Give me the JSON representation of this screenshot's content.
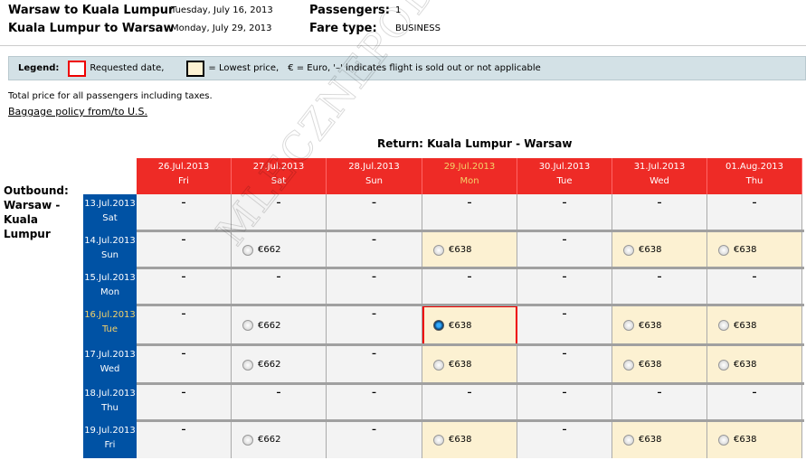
{
  "summary": {
    "outbound_route": "Warsaw to Kuala Lumpur",
    "outbound_date": "Tuesday, July 16, 2013",
    "return_route": "Kuala Lumpur to Warsaw",
    "return_date": "Monday, July 29, 2013",
    "passengers_label": "Passengers:",
    "passengers": "1",
    "fare_type_label": "Fare type:",
    "fare_type": "BUSINESS"
  },
  "legend": {
    "label": "Legend:",
    "requested": "Requested date,",
    "lowest": "= Lowest price,",
    "note": "€  = Euro, '–' indicates flight is sold out or not applicable"
  },
  "info": {
    "total_note": "Total price for all passengers including taxes.",
    "baggage_link": "Baggage policy from/to U.S."
  },
  "watermark": "MLECZNEPODROZE.pl",
  "grid": {
    "return_title": "Return: Kuala Lumpur - Warsaw",
    "outbound_title": "Outbound: Warsaw - Kuala Lumpur",
    "columns": [
      {
        "date": "26.Jul.2013",
        "day": "Fri"
      },
      {
        "date": "27.Jul.2013",
        "day": "Sat"
      },
      {
        "date": "28.Jul.2013",
        "day": "Sun"
      },
      {
        "date": "29.Jul.2013",
        "day": "Mon",
        "requested": true
      },
      {
        "date": "30.Jul.2013",
        "day": "Tue"
      },
      {
        "date": "31.Jul.2013",
        "day": "Wed"
      },
      {
        "date": "01.Aug.2013",
        "day": "Thu"
      }
    ],
    "rows": [
      {
        "date": "13.Jul.2013",
        "day": "Sat",
        "cells": [
          "–",
          "–",
          "–",
          "–",
          "–",
          "–",
          "–"
        ]
      },
      {
        "date": "14.Jul.2013",
        "day": "Sun",
        "cells": [
          "–",
          "€662",
          "–",
          "€638",
          "–",
          "€638",
          "€638"
        ]
      },
      {
        "date": "15.Jul.2013",
        "day": "Mon",
        "cells": [
          "–",
          "–",
          "–",
          "–",
          "–",
          "–",
          "–"
        ]
      },
      {
        "date": "16.Jul.2013",
        "day": "Tue",
        "requested": true,
        "cells": [
          "–",
          "€662",
          "–",
          "€638",
          "–",
          "€638",
          "€638"
        ]
      },
      {
        "date": "17.Jul.2013",
        "day": "Wed",
        "cells": [
          "–",
          "€662",
          "–",
          "€638",
          "–",
          "€638",
          "€638"
        ]
      },
      {
        "date": "18.Jul.2013",
        "day": "Thu",
        "cells": [
          "–",
          "–",
          "–",
          "–",
          "–",
          "–",
          "–"
        ]
      },
      {
        "date": "19.Jul.2013",
        "day": "Fri",
        "cells": [
          "–",
          "€662",
          "–",
          "€638",
          "–",
          "€638",
          "€638"
        ]
      }
    ],
    "lowest_price": "€638",
    "selected": {
      "row": 3,
      "col": 3
    }
  },
  "colors": {
    "header": "#ee2b26",
    "row_label": "#0052a4",
    "lowest": "#fcf1d2",
    "requested_border": "#ee0000"
  }
}
